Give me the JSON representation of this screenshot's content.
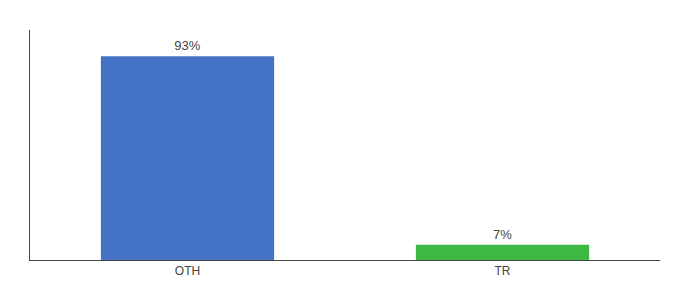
{
  "chart_data": {
    "type": "bar",
    "categories": [
      "OTH",
      "TR"
    ],
    "values": [
      93,
      7
    ],
    "value_labels": [
      "93%",
      "7%"
    ],
    "colors": [
      "#4472c4",
      "#3cb843"
    ],
    "ylim": [
      0,
      105
    ],
    "data_labels": true,
    "tick_labels": "x",
    "grid": false
  }
}
